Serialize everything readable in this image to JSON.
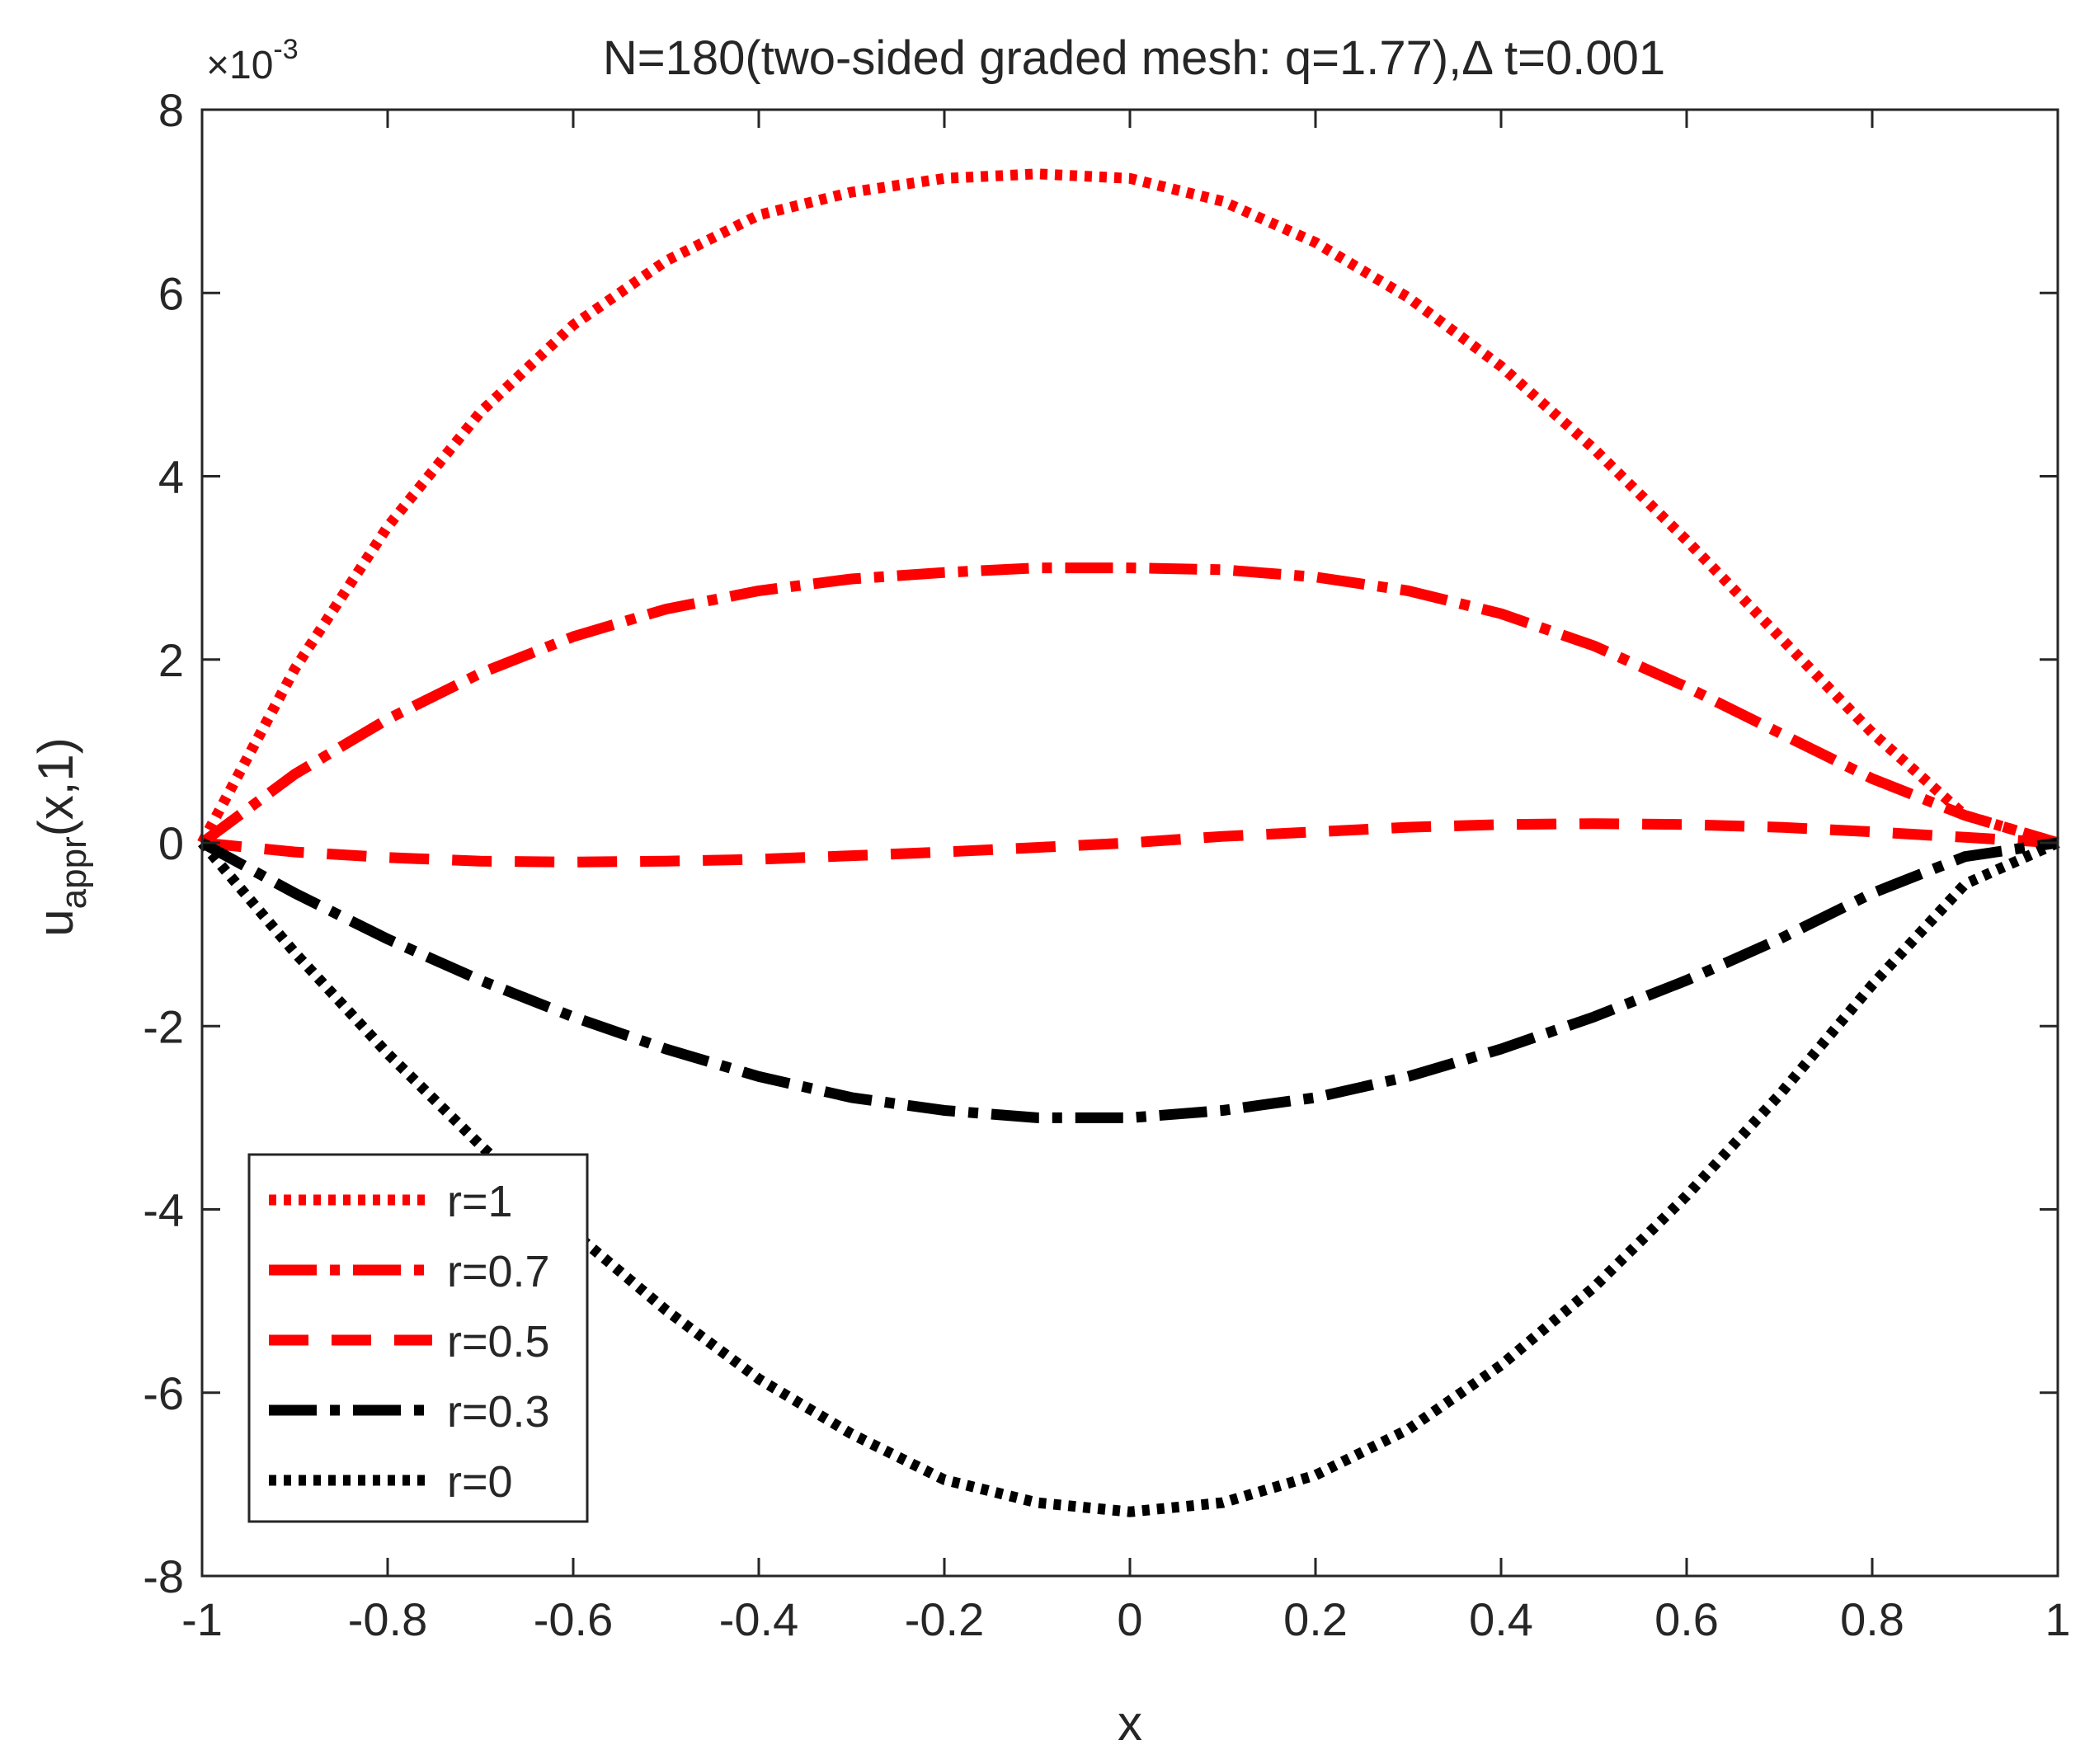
{
  "chart_data": {
    "type": "line",
    "title": "N=180(two-sided graded mesh: q=1.77),Δ t=0.001",
    "xlabel": "x",
    "ylabel": {
      "base": "u",
      "subscript": "appr",
      "suffix": "(x,1)"
    },
    "y_exponent": {
      "prefix": "×10",
      "power": "-3"
    },
    "xlim": [
      -1,
      1
    ],
    "ylim": [
      -8,
      8
    ],
    "x_ticks": [
      -1,
      -0.8,
      -0.6,
      -0.4,
      -0.2,
      0,
      0.2,
      0.4,
      0.6,
      0.8,
      1
    ],
    "x_tick_labels": [
      "-1",
      "-0.8",
      "-0.6",
      "-0.4",
      "-0.2",
      "0",
      "0.2",
      "0.4",
      "0.6",
      "0.8",
      "1"
    ],
    "y_ticks": [
      -8,
      -6,
      -4,
      -2,
      0,
      2,
      4,
      6,
      8
    ],
    "y_tick_labels": [
      "-8",
      "-6",
      "-4",
      "-2",
      "0",
      "2",
      "4",
      "6",
      "8"
    ],
    "y_units_note": "values in units of 1e-3",
    "grid": false,
    "legend_position": "bottom-left",
    "series": [
      {
        "name": "r=1",
        "color": "#ff0000",
        "style": "dotted",
        "x": [
          -1,
          -0.9,
          -0.8,
          -0.7,
          -0.6,
          -0.5,
          -0.4,
          -0.3,
          -0.2,
          -0.1,
          0,
          0.1,
          0.2,
          0.3,
          0.4,
          0.5,
          0.6,
          0.7,
          0.8,
          0.9,
          1
        ],
        "y": [
          0,
          1.9,
          3.45,
          4.7,
          5.65,
          6.35,
          6.85,
          7.1,
          7.25,
          7.3,
          7.25,
          7.0,
          6.55,
          5.95,
          5.2,
          4.3,
          3.3,
          2.25,
          1.2,
          0.3,
          0
        ]
      },
      {
        "name": "r=0.7",
        "color": "#ff0000",
        "style": "dashdot",
        "x": [
          -1,
          -0.9,
          -0.8,
          -0.7,
          -0.6,
          -0.5,
          -0.4,
          -0.3,
          -0.2,
          -0.1,
          0,
          0.1,
          0.2,
          0.3,
          0.4,
          0.5,
          0.6,
          0.7,
          0.8,
          0.9,
          1
        ],
        "y": [
          0,
          0.75,
          1.35,
          1.85,
          2.25,
          2.55,
          2.75,
          2.88,
          2.95,
          3.0,
          3.0,
          2.98,
          2.9,
          2.75,
          2.5,
          2.15,
          1.7,
          1.2,
          0.7,
          0.3,
          0
        ]
      },
      {
        "name": "r=0.5",
        "color": "#ff0000",
        "style": "dashed",
        "x": [
          -1,
          -0.9,
          -0.8,
          -0.7,
          -0.6,
          -0.5,
          -0.4,
          -0.3,
          -0.2,
          -0.1,
          0,
          0.1,
          0.2,
          0.3,
          0.4,
          0.5,
          0.6,
          0.7,
          0.8,
          0.9,
          1
        ],
        "y": [
          0,
          -0.1,
          -0.16,
          -0.2,
          -0.21,
          -0.2,
          -0.18,
          -0.14,
          -0.1,
          -0.05,
          0,
          0.07,
          0.12,
          0.17,
          0.2,
          0.21,
          0.2,
          0.17,
          0.12,
          0.06,
          0
        ]
      },
      {
        "name": "r=0.3",
        "color": "#000000",
        "style": "dashdot",
        "x": [
          -1,
          -0.9,
          -0.8,
          -0.7,
          -0.6,
          -0.5,
          -0.4,
          -0.3,
          -0.2,
          -0.1,
          0,
          0.1,
          0.2,
          0.3,
          0.4,
          0.5,
          0.6,
          0.7,
          0.8,
          0.9,
          1
        ],
        "y": [
          0,
          -0.55,
          -1.05,
          -1.5,
          -1.9,
          -2.25,
          -2.55,
          -2.78,
          -2.92,
          -3.0,
          -3.0,
          -2.92,
          -2.78,
          -2.55,
          -2.25,
          -1.9,
          -1.5,
          -1.05,
          -0.55,
          -0.15,
          0
        ]
      },
      {
        "name": "r=0",
        "color": "#000000",
        "style": "dotted",
        "x": [
          -1,
          -0.9,
          -0.8,
          -0.7,
          -0.6,
          -0.5,
          -0.4,
          -0.3,
          -0.2,
          -0.1,
          0,
          0.1,
          0.2,
          0.3,
          0.4,
          0.5,
          0.6,
          0.7,
          0.8,
          0.9,
          1
        ],
        "y": [
          0,
          -1.2,
          -2.3,
          -3.3,
          -4.25,
          -5.1,
          -5.85,
          -6.45,
          -6.95,
          -7.2,
          -7.3,
          -7.2,
          -6.9,
          -6.4,
          -5.7,
          -4.85,
          -3.85,
          -2.75,
          -1.55,
          -0.45,
          0
        ]
      }
    ]
  }
}
